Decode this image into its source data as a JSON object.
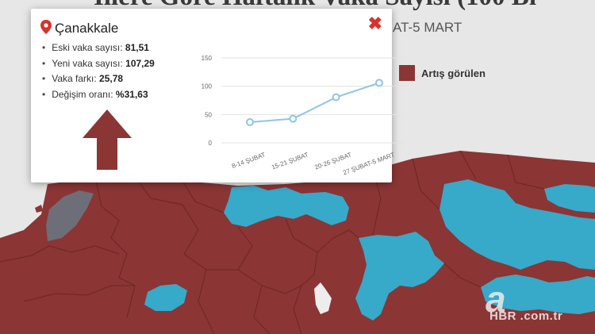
{
  "page": {
    "title": "İllere Göre Haftalık Vaka Sayısı (100 Bi",
    "subtitle_fragment": "AT-5 MART",
    "legend_label": "Artış görülen"
  },
  "colors": {
    "increase": "#8b3535",
    "decrease": "#37a9c9",
    "nodata": "#6e6e78",
    "background": "#e7e7e7",
    "chart_line": "#8ec5e8",
    "arrow": "#8b3535",
    "close": "#d9332b"
  },
  "popup": {
    "city": "Çanakkale",
    "close_icon": "close-icon",
    "stats": [
      {
        "label": "Eski vaka sayısı:",
        "value": "81,51"
      },
      {
        "label": "Yeni vaka sayısı:",
        "value": "107,29"
      },
      {
        "label": "Vaka farkı:",
        "value": "25,78"
      },
      {
        "label": "Değişim oranı:",
        "value": "%31,63"
      }
    ],
    "trend_icon": "arrow-up-icon"
  },
  "chart_data": {
    "type": "line",
    "categories": [
      "8-14 ŞUBAT",
      "15-21 ŞUBAT",
      "20-26 ŞUBAT",
      "27 ŞUBAT-5 MART"
    ],
    "values": [
      36.5,
      42.5,
      80.5,
      106
    ],
    "ylim": [
      0,
      150
    ],
    "yticks": [
      0,
      50,
      100,
      150
    ],
    "grid": true,
    "title": "",
    "xlabel": "",
    "ylabel": ""
  },
  "watermark": {
    "logo": "a",
    "text": "HBR .com.tr"
  }
}
